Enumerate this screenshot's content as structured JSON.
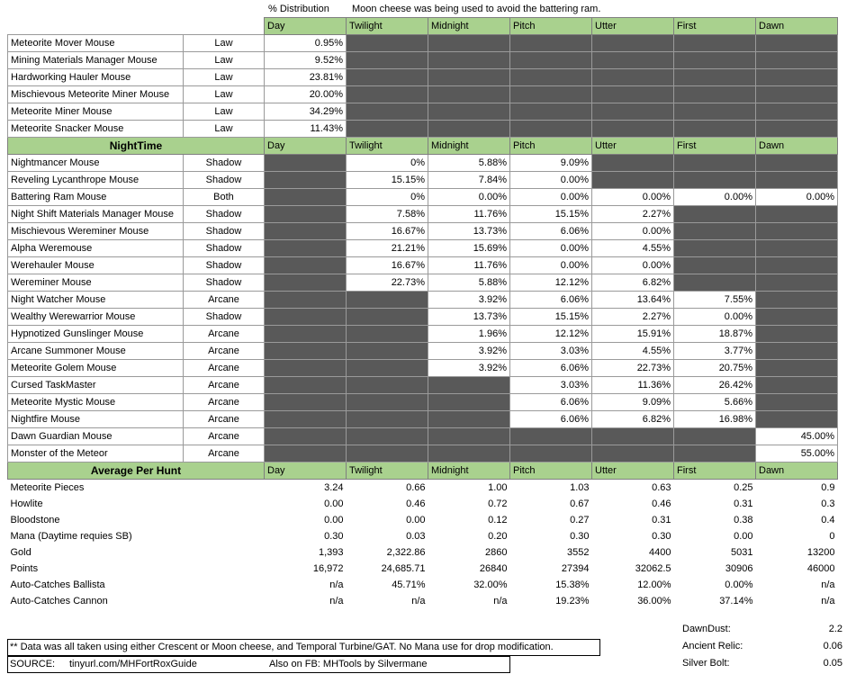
{
  "header": {
    "distribution_label": "% Distribution",
    "note": "Moon cheese was being used to avoid the battering ram."
  },
  "phases": [
    "Day",
    "Twilight",
    "Midnight",
    "Pitch",
    "Utter",
    "First",
    "Dawn"
  ],
  "day_mice": [
    {
      "name": "Meteorite Mover Mouse",
      "type": "Law",
      "values": [
        "0.95%",
        null,
        null,
        null,
        null,
        null,
        null
      ]
    },
    {
      "name": "Mining Materials Manager Mouse",
      "type": "Law",
      "values": [
        "9.52%",
        null,
        null,
        null,
        null,
        null,
        null
      ]
    },
    {
      "name": "Hardworking Hauler Mouse",
      "type": "Law",
      "values": [
        "23.81%",
        null,
        null,
        null,
        null,
        null,
        null
      ]
    },
    {
      "name": "Mischievous Meteorite Miner Mouse",
      "type": "Law",
      "values": [
        "20.00%",
        null,
        null,
        null,
        null,
        null,
        null
      ]
    },
    {
      "name": "Meteorite Miner Mouse",
      "type": "Law",
      "values": [
        "34.29%",
        null,
        null,
        null,
        null,
        null,
        null
      ]
    },
    {
      "name": "Meteorite Snacker Mouse",
      "type": "Law",
      "values": [
        "11.43%",
        null,
        null,
        null,
        null,
        null,
        null
      ]
    }
  ],
  "nighttime": {
    "title": "NightTime",
    "mice": [
      {
        "name": "Nightmancer Mouse",
        "type": "Shadow",
        "values": [
          null,
          "0%",
          "5.88%",
          "9.09%",
          null,
          null,
          null
        ]
      },
      {
        "name": "Reveling Lycanthrope Mouse",
        "type": "Shadow",
        "values": [
          null,
          "15.15%",
          "7.84%",
          "0.00%",
          null,
          null,
          null
        ]
      },
      {
        "name": "Battering Ram Mouse",
        "type": "Both",
        "values": [
          null,
          "0%",
          "0.00%",
          "0.00%",
          "0.00%",
          "0.00%",
          "0.00%"
        ]
      },
      {
        "name": "Night Shift Materials Manager Mouse",
        "type": "Shadow",
        "values": [
          null,
          "7.58%",
          "11.76%",
          "15.15%",
          "2.27%",
          null,
          null
        ]
      },
      {
        "name": "Mischievous Wereminer Mouse",
        "type": "Shadow",
        "values": [
          null,
          "16.67%",
          "13.73%",
          "6.06%",
          "0.00%",
          null,
          null
        ]
      },
      {
        "name": "Alpha Weremouse",
        "type": "Shadow",
        "values": [
          null,
          "21.21%",
          "15.69%",
          "0.00%",
          "4.55%",
          null,
          null
        ]
      },
      {
        "name": "Werehauler Mouse",
        "type": "Shadow",
        "values": [
          null,
          "16.67%",
          "11.76%",
          "0.00%",
          "0.00%",
          null,
          null
        ]
      },
      {
        "name": "Wereminer Mouse",
        "type": "Shadow",
        "values": [
          null,
          "22.73%",
          "5.88%",
          "12.12%",
          "6.82%",
          null,
          null
        ]
      },
      {
        "name": "Night Watcher Mouse",
        "type": "Arcane",
        "values": [
          null,
          null,
          "3.92%",
          "6.06%",
          "13.64%",
          "7.55%",
          null
        ]
      },
      {
        "name": "Wealthy Werewarrior Mouse",
        "type": "Shadow",
        "values": [
          null,
          null,
          "13.73%",
          "15.15%",
          "2.27%",
          "0.00%",
          null
        ]
      },
      {
        "name": "Hypnotized Gunslinger Mouse",
        "type": "Arcane",
        "values": [
          null,
          null,
          "1.96%",
          "12.12%",
          "15.91%",
          "18.87%",
          null
        ]
      },
      {
        "name": "Arcane Summoner Mouse",
        "type": "Arcane",
        "values": [
          null,
          null,
          "3.92%",
          "3.03%",
          "4.55%",
          "3.77%",
          null
        ]
      },
      {
        "name": "Meteorite Golem Mouse",
        "type": "Arcane",
        "values": [
          null,
          null,
          "3.92%",
          "6.06%",
          "22.73%",
          "20.75%",
          null
        ]
      },
      {
        "name": "Cursed TaskMaster",
        "type": "Arcane",
        "values": [
          null,
          null,
          null,
          "3.03%",
          "11.36%",
          "26.42%",
          null
        ]
      },
      {
        "name": "Meteorite Mystic Mouse",
        "type": "Arcane",
        "values": [
          null,
          null,
          null,
          "6.06%",
          "9.09%",
          "5.66%",
          null
        ]
      },
      {
        "name": "Nightfire Mouse",
        "type": "Arcane",
        "values": [
          null,
          null,
          null,
          "6.06%",
          "6.82%",
          "16.98%",
          null
        ]
      },
      {
        "name": "Dawn Guardian Mouse",
        "type": "Arcane",
        "values": [
          null,
          null,
          null,
          null,
          null,
          null,
          "45.00%"
        ]
      },
      {
        "name": "Monster of the Meteor",
        "type": "Arcane",
        "values": [
          null,
          null,
          null,
          null,
          null,
          null,
          "55.00%"
        ]
      }
    ]
  },
  "average": {
    "title": "Average Per Hunt",
    "rows": [
      {
        "label": "Meteorite Pieces",
        "values": [
          "3.24",
          "0.66",
          "1.00",
          "1.03",
          "0.63",
          "0.25",
          "0.9"
        ]
      },
      {
        "label": "Howlite",
        "values": [
          "0.00",
          "0.46",
          "0.72",
          "0.67",
          "0.46",
          "0.31",
          "0.3"
        ]
      },
      {
        "label": "Bloodstone",
        "values": [
          "0.00",
          "0.00",
          "0.12",
          "0.27",
          "0.31",
          "0.38",
          "0.4"
        ]
      },
      {
        "label": "Mana  (Daytime requies SB)",
        "values": [
          "0.30",
          "0.03",
          "0.20",
          "0.30",
          "0.30",
          "0.00",
          "0"
        ]
      },
      {
        "label": "Gold",
        "values": [
          "1,393",
          "2,322.86",
          "2860",
          "3552",
          "4400",
          "5031",
          "13200"
        ]
      },
      {
        "label": "Points",
        "values": [
          "16,972",
          "24,685.71",
          "26840",
          "27394",
          "32062.5",
          "30906",
          "46000"
        ]
      },
      {
        "label": "Auto-Catches Ballista",
        "values": [
          "n/a",
          "45.71%",
          "32.00%",
          "15.38%",
          "12.00%",
          "0.00%",
          "n/a"
        ]
      },
      {
        "label": "Auto-Catches Cannon",
        "values": [
          "n/a",
          "n/a",
          "n/a",
          "19.23%",
          "36.00%",
          "37.14%",
          "n/a"
        ]
      }
    ]
  },
  "extras": [
    {
      "label": "DawnDust:",
      "value": "2.2"
    },
    {
      "label": "Ancient Relic:",
      "value": "0.06"
    },
    {
      "label": "Silver Bolt:",
      "value": "0.05"
    }
  ],
  "footer": {
    "data_note": "** Data was all taken using either Crescent or Moon cheese, and Temporal Turbine/GAT.  No Mana use for drop modification.",
    "source_label": "SOURCE:",
    "source_url": "tinyurl.com/MHFortRoxGuide",
    "fb_note": "Also on FB: MHTools by Silvermane"
  }
}
